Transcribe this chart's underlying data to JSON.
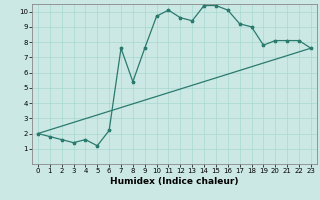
{
  "xlabel": "Humidex (Indice chaleur)",
  "xlim": [
    -0.5,
    23.5
  ],
  "ylim": [
    0,
    10.5
  ],
  "xticks": [
    0,
    1,
    2,
    3,
    4,
    5,
    6,
    7,
    8,
    9,
    10,
    11,
    12,
    13,
    14,
    15,
    16,
    17,
    18,
    19,
    20,
    21,
    22,
    23
  ],
  "yticks": [
    1,
    2,
    3,
    4,
    5,
    6,
    7,
    8,
    9,
    10
  ],
  "bg_color": "#cce8e4",
  "line_color": "#2a7a6e",
  "curve1_x": [
    0,
    1,
    2,
    3,
    4,
    5,
    6,
    7,
    8,
    9,
    10,
    11,
    12,
    13,
    14,
    15,
    16,
    17,
    18,
    19,
    20,
    21,
    22,
    23
  ],
  "curve1_y": [
    2.0,
    1.8,
    1.6,
    1.4,
    1.6,
    1.2,
    2.2,
    7.6,
    5.4,
    7.6,
    9.7,
    10.1,
    9.6,
    9.4,
    10.4,
    10.4,
    10.1,
    9.2,
    9.0,
    7.8,
    8.1,
    8.1,
    8.1,
    7.6
  ],
  "curve2_x": [
    0,
    23
  ],
  "curve2_y": [
    2.0,
    7.6
  ],
  "marker_size": 2.5,
  "line_width": 0.9,
  "tick_fontsize": 5.0,
  "xlabel_fontsize": 6.5
}
